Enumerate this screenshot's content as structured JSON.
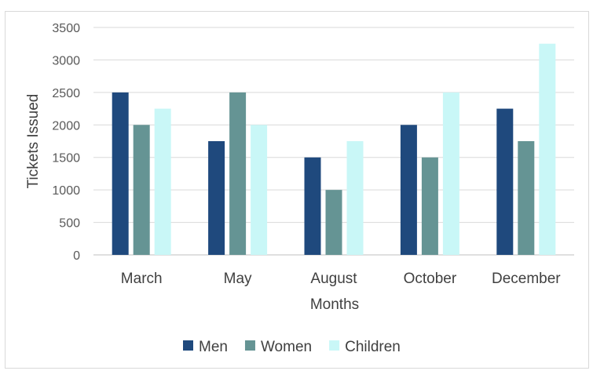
{
  "chart_data": {
    "type": "bar",
    "title": "",
    "xlabel": "Months",
    "ylabel": "Tickets Issued",
    "categories": [
      "March",
      "May",
      "August",
      "October",
      "December"
    ],
    "series": [
      {
        "name": "Men",
        "values": [
          2500,
          1750,
          1500,
          2000,
          2250
        ],
        "color": "#1f497d"
      },
      {
        "name": "Women",
        "values": [
          2000,
          2500,
          1000,
          1500,
          1750
        ],
        "color": "#659494"
      },
      {
        "name": "Children",
        "values": [
          2250,
          2000,
          1750,
          2500,
          3250
        ],
        "color": "#c9f7f7"
      }
    ],
    "ylim": [
      0,
      3500
    ],
    "yticks": [
      0,
      500,
      1000,
      1500,
      2000,
      2500,
      3000,
      3500
    ],
    "grid": true,
    "legend": "bottom"
  }
}
